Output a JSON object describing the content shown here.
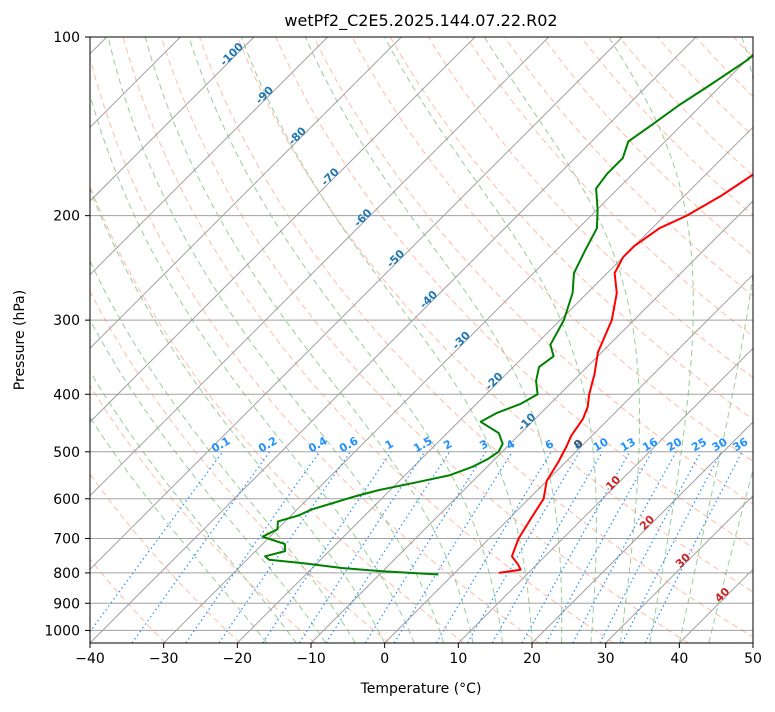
{
  "chart_data": {
    "type": "line",
    "title": "wetPf2_C2E5.2025.144.07.22.R02",
    "xlabel": "Temperature (°C)",
    "ylabel": "Pressure (hPa)",
    "xlim": [
      -40,
      50
    ],
    "ylim": [
      1050,
      100
    ],
    "y_scale": "log",
    "skew": true,
    "grid": true,
    "x_ticks": [
      -40,
      -30,
      -20,
      -10,
      0,
      10,
      20,
      30,
      40,
      50
    ],
    "x_tick_labels": [
      "−40",
      "−30",
      "−20",
      "−10",
      "0",
      "10",
      "20",
      "30",
      "40",
      "50"
    ],
    "y_ticks": [
      1000,
      900,
      800,
      700,
      600,
      500,
      400,
      300,
      200,
      100
    ],
    "y_tick_labels": [
      "1000",
      "900",
      "800",
      "700",
      "600",
      "500",
      "400",
      "300",
      "200",
      "100"
    ],
    "series": [
      {
        "color": "#ff0000",
        "role": "temperature",
        "points": [
          {
            "p": 800,
            "t": 6.0
          },
          {
            "p": 790,
            "t": 8.5
          },
          {
            "p": 775,
            "t": 7.5
          },
          {
            "p": 750,
            "t": 5.5
          },
          {
            "p": 700,
            "t": 4.0
          },
          {
            "p": 650,
            "t": 3.0
          },
          {
            "p": 600,
            "t": 2.0
          },
          {
            "p": 560,
            "t": 0.0
          },
          {
            "p": 520,
            "t": -1.0
          },
          {
            "p": 490,
            "t": -2.0
          },
          {
            "p": 470,
            "t": -2.8
          },
          {
            "p": 440,
            "t": -3.5
          },
          {
            "p": 420,
            "t": -4.5
          },
          {
            "p": 400,
            "t": -6.0
          },
          {
            "p": 370,
            "t": -8.0
          },
          {
            "p": 340,
            "t": -10.5
          },
          {
            "p": 300,
            "t": -13.0
          },
          {
            "p": 270,
            "t": -16.0
          },
          {
            "p": 250,
            "t": -19.0
          },
          {
            "p": 235,
            "t": -20.0
          },
          {
            "p": 225,
            "t": -20.0
          },
          {
            "p": 210,
            "t": -19.0
          },
          {
            "p": 200,
            "t": -17.0
          },
          {
            "p": 185,
            "t": -15.0
          },
          {
            "p": 165,
            "t": -13.0
          },
          {
            "p": 155,
            "t": -12.0
          },
          {
            "p": 145,
            "t": -9.0
          },
          {
            "p": 135,
            "t": -8.0
          },
          {
            "p": 125,
            "t": -7.5
          },
          {
            "p": 115,
            "t": -7.0
          },
          {
            "p": 105,
            "t": -5.5
          },
          {
            "p": 100,
            "t": -4.5
          }
        ]
      },
      {
        "color": "#008000",
        "role": "dewpoint",
        "points": [
          {
            "p": 805,
            "t": -2.0
          },
          {
            "p": 795,
            "t": -10.0
          },
          {
            "p": 785,
            "t": -16.0
          },
          {
            "p": 770,
            "t": -22.0
          },
          {
            "p": 760,
            "t": -27.0
          },
          {
            "p": 750,
            "t": -28.0
          },
          {
            "p": 735,
            "t": -26.0
          },
          {
            "p": 715,
            "t": -27.0
          },
          {
            "p": 695,
            "t": -31.0
          },
          {
            "p": 675,
            "t": -30.0
          },
          {
            "p": 655,
            "t": -31.0
          },
          {
            "p": 640,
            "t": -29.0
          },
          {
            "p": 625,
            "t": -28.0
          },
          {
            "p": 610,
            "t": -26.0
          },
          {
            "p": 595,
            "t": -24.0
          },
          {
            "p": 580,
            "t": -21.5
          },
          {
            "p": 565,
            "t": -18.0
          },
          {
            "p": 548,
            "t": -14.0
          },
          {
            "p": 530,
            "t": -12.0
          },
          {
            "p": 515,
            "t": -11.0
          },
          {
            "p": 500,
            "t": -10.5
          },
          {
            "p": 485,
            "t": -11.0
          },
          {
            "p": 465,
            "t": -13.0
          },
          {
            "p": 445,
            "t": -17.0
          },
          {
            "p": 430,
            "t": -16.0
          },
          {
            "p": 415,
            "t": -14.0
          },
          {
            "p": 400,
            "t": -13.0
          },
          {
            "p": 380,
            "t": -15.0
          },
          {
            "p": 360,
            "t": -16.5
          },
          {
            "p": 345,
            "t": -16.0
          },
          {
            "p": 330,
            "t": -18.0
          },
          {
            "p": 300,
            "t": -19.5
          },
          {
            "p": 270,
            "t": -22.0
          },
          {
            "p": 250,
            "t": -24.5
          },
          {
            "p": 230,
            "t": -26.0
          },
          {
            "p": 210,
            "t": -27.5
          },
          {
            "p": 195,
            "t": -30.0
          },
          {
            "p": 180,
            "t": -33.0
          },
          {
            "p": 170,
            "t": -33.5
          },
          {
            "p": 160,
            "t": -33.5
          },
          {
            "p": 150,
            "t": -35.0
          },
          {
            "p": 140,
            "t": -34.0
          },
          {
            "p": 130,
            "t": -33.0
          },
          {
            "p": 120,
            "t": -31.5
          },
          {
            "p": 110,
            "t": -30.0
          },
          {
            "p": 100,
            "t": -29.0
          }
        ]
      }
    ],
    "isotherm_labels": [
      {
        "value": -100,
        "text": "-100"
      },
      {
        "value": -90,
        "text": "-90"
      },
      {
        "value": -80,
        "text": "-80"
      },
      {
        "value": -70,
        "text": "-70"
      },
      {
        "value": -60,
        "text": "-60"
      },
      {
        "value": -50,
        "text": "-50"
      },
      {
        "value": -40,
        "text": "-40"
      },
      {
        "value": -30,
        "text": "-30"
      },
      {
        "value": -20,
        "text": "-20"
      },
      {
        "value": -10,
        "text": "-10"
      }
    ],
    "mixing_ratio_labels": [
      "0.1",
      "0.2",
      "0.4",
      "0.6",
      "1",
      "1.5",
      "2",
      "3",
      "4",
      "6",
      "8",
      "10",
      "13",
      "16",
      "20",
      "25",
      "30",
      "36"
    ],
    "mixing_ratio_values": [
      0.1,
      0.2,
      0.4,
      0.6,
      1,
      1.5,
      2,
      3,
      4,
      6,
      8,
      10,
      13,
      16,
      20,
      25,
      30,
      36
    ],
    "moist_adiabat_labels": [
      {
        "t": 0,
        "p": 490,
        "text": "0",
        "color": "#555555"
      },
      {
        "t": 10,
        "p": 570,
        "text": "10",
        "color": "#cc2222"
      },
      {
        "t": 20,
        "p": 665,
        "text": "20",
        "color": "#cc2222"
      },
      {
        "t": 30,
        "p": 770,
        "text": "30",
        "color": "#cc2222"
      },
      {
        "t": 40,
        "p": 880,
        "text": "40",
        "color": "#cc2222"
      }
    ],
    "colors": {
      "temperature": "#ff0000",
      "dewpoint": "#008000",
      "isotherm": "#a0a0a0",
      "isobar": "#a0a0a0",
      "dry_adiabat": "#ffa080",
      "moist_adiabat": "#80c080",
      "mixing_ratio": "#1e90ff",
      "isotherm_label": "#1f77b4"
    }
  }
}
